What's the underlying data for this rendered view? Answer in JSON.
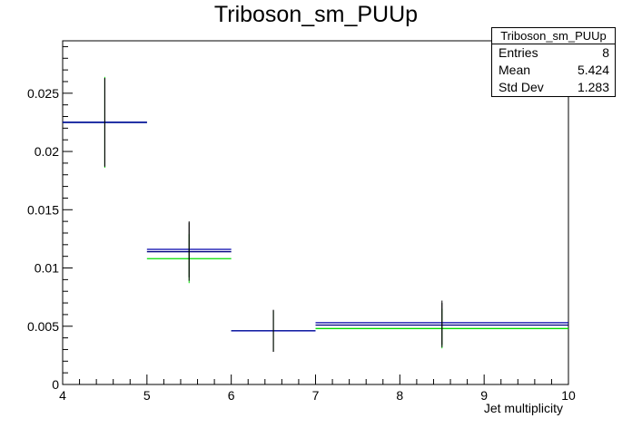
{
  "colors": {
    "series_green": "#00dd00",
    "series_blue": "#000080",
    "series_navy": "#0000aa",
    "error_bar": "#000000"
  },
  "stats": {
    "title": "Triboson_sm_PUUp",
    "entries_label": "Entries",
    "entries_value": "8",
    "mean_label": "Mean",
    "mean_value": "5.424",
    "std_label": "Std Dev",
    "std_value": "1.283"
  },
  "chart_data": {
    "type": "histogram",
    "title": "Triboson_sm_PUUp",
    "xlabel": "Jet multiplicity",
    "ylabel": "",
    "xlim": [
      4,
      10
    ],
    "ylim": [
      0,
      0.0295
    ],
    "x_ticks": [
      "4",
      "5",
      "6",
      "7",
      "8",
      "9",
      "10"
    ],
    "y_ticks": [
      "0",
      "0.005",
      "0.01",
      "0.015",
      "0.02",
      "0.025"
    ],
    "bins": [
      [
        4,
        5
      ],
      [
        5,
        6
      ],
      [
        6,
        7
      ],
      [
        7,
        10
      ]
    ],
    "series": [
      {
        "color": "#00dd00",
        "values": [
          0.0225,
          0.0108,
          0.0046,
          0.0048
        ],
        "errors": [
          0.0039,
          0.0021,
          0.0017,
          0.0017
        ]
      },
      {
        "color": "#000080",
        "values": [
          0.0225,
          0.0114,
          0.0046,
          0.0051
        ],
        "errors": [
          0.0038,
          0.0025,
          0.0018,
          0.0019
        ]
      },
      {
        "color": "#0000aa",
        "values": [
          0.0225,
          0.0116,
          0.0046,
          0.0053
        ],
        "errors": [
          0.0038,
          0.0024,
          0.0018,
          0.0019
        ]
      }
    ]
  }
}
